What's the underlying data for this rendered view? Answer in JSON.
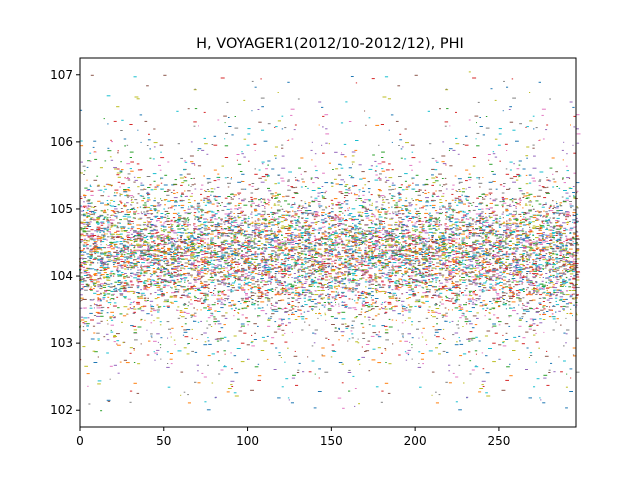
{
  "chart_data": {
    "type": "scatter",
    "title": "H, VOYAGER1(2012/10-2012/12), PHI",
    "xlabel": "",
    "ylabel": "",
    "xlim": [
      0,
      296
    ],
    "ylim": [
      101.75,
      107.25
    ],
    "xticks": [
      0,
      50,
      100,
      150,
      200,
      250
    ],
    "yticks": [
      102,
      103,
      104,
      105,
      106,
      107
    ],
    "xtick_labels": [
      "0",
      "50",
      "100",
      "150",
      "200",
      "250"
    ],
    "ytick_labels": [
      "102",
      "103",
      "104",
      "105",
      "106",
      "107"
    ],
    "grid": false,
    "marker": "pixel",
    "x_step": 2,
    "value_center": 104.35,
    "value_spread_core": 0.45,
    "value_spread_outer": 1.1,
    "value_min": 102.0,
    "value_max": 107.05,
    "series_colors": [
      "#1f77b4",
      "#ff7f0e",
      "#2ca02c",
      "#d62728",
      "#9467bd",
      "#8c564b",
      "#e377c2",
      "#7f7f7f",
      "#bcbd22",
      "#17becf"
    ]
  }
}
